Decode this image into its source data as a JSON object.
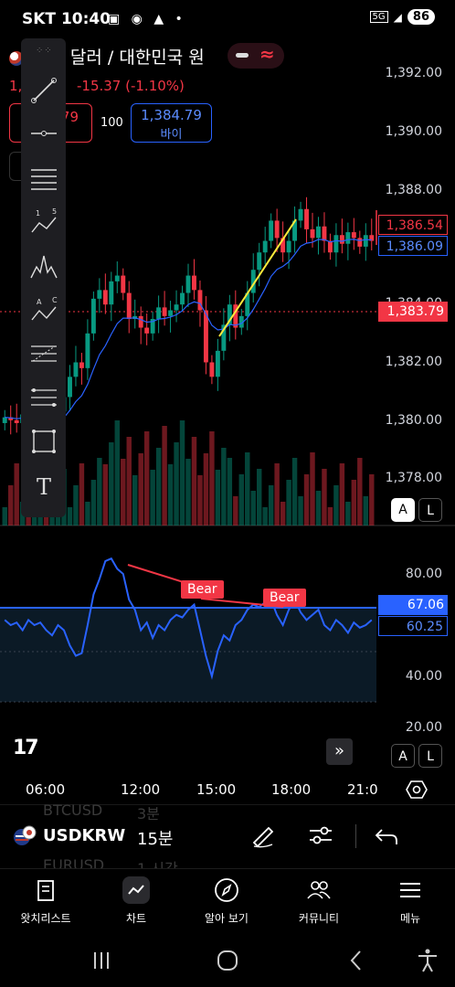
{
  "status_bar": {
    "carrier": "SKT",
    "time": "10:40",
    "icons": [
      "notification-icon",
      "talk-icon",
      "alert-icon",
      "dot-icon"
    ],
    "network": "5G",
    "battery": "86"
  },
  "header": {
    "title": "미국 달러 / 대한민국 원",
    "title_visible": "- 달러 / 대한민국 원",
    "price_prefix": "1,",
    "price_change": "-15.37 (-1.10%)"
  },
  "trade": {
    "sell_value": "79",
    "spread": "100",
    "buy_value": "1,384.79",
    "buy_label": "바이"
  },
  "price_axis": {
    "ticks": [
      "1,392.00",
      "1,390.00",
      "1,388.00",
      "1,384.00",
      "1,382.00",
      "1,380.00",
      "1,378.00"
    ],
    "label_high": "1,386.54",
    "label_ma": "1,386.09",
    "label_last": "1,383.79"
  },
  "rsi_axis": {
    "ticks": [
      "80.00",
      "40.00",
      "20.00"
    ],
    "label_rsi": "67.06",
    "label_ma": "60.25",
    "bear_labels": [
      "Bear",
      "Bear"
    ]
  },
  "scale_buttons": {
    "auto": "A",
    "log": "L"
  },
  "time_axis": {
    "labels": [
      "06:00",
      "12:00",
      "15:00",
      "18:00",
      "21:0"
    ]
  },
  "symbol_bar": {
    "ghost_top_symbol": "BTCUSD",
    "ghost_top_interval": "3분",
    "symbol": "USDKRW",
    "interval": "15분",
    "ghost_bottom_symbol": "EURUSD",
    "ghost_bottom_interval": "1 시간"
  },
  "bottom_nav": {
    "items": [
      {
        "label": "왓치리스트",
        "icon": "watchlist-icon"
      },
      {
        "label": "차트",
        "icon": "chart-icon"
      },
      {
        "label": "알아 보기",
        "icon": "compass-icon"
      },
      {
        "label": "커뮤니티",
        "icon": "community-icon"
      },
      {
        "label": "메뉴",
        "icon": "menu-icon"
      }
    ]
  },
  "colors": {
    "up": "#089981",
    "down": "#f23645",
    "ma": "#2962ff",
    "trend_line": "#ffeb3b"
  }
}
